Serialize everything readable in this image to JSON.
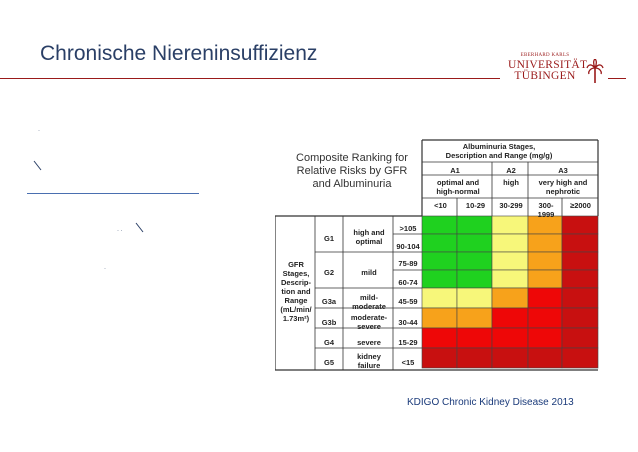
{
  "slide": {
    "title": "Chronische Niereninsuffizienz",
    "caption": "KDIGO Chronic Kidney Disease 2013"
  },
  "logo": {
    "small_text": "EBERHARD KARLS",
    "line1": "UNIVERSITÄT",
    "line2": "TÜBINGEN"
  },
  "colors": {
    "title": "#2a3f66",
    "rule": "#9a1a1a",
    "green": "#1fd11f",
    "yellow": "#f7f77a",
    "orange": "#f7a21b",
    "red": "#ee0707",
    "darkred": "#c81010"
  },
  "figure": {
    "title": [
      "Composite Ranking for",
      "Relative Risks by GFR",
      "and Albuminuria"
    ],
    "albuminuria_header": [
      "Albuminuria Stages,",
      "Description and Range (mg/g)"
    ],
    "albuminuria_stages": [
      {
        "stage": "A1",
        "desc": [
          "optimal and",
          "high-normal"
        ],
        "ranges": [
          "<10",
          "10-29"
        ]
      },
      {
        "stage": "A2",
        "desc": [
          "high"
        ],
        "ranges": [
          "30-299"
        ]
      },
      {
        "stage": "A3",
        "desc": [
          "very high and",
          "nephrotic"
        ],
        "ranges": [
          "300-\n1999",
          "≥2000"
        ]
      }
    ],
    "gfr_label": [
      "GFR",
      "Stages,",
      "Descrip-",
      "tion and",
      "Range",
      "(mL/min/",
      "1.73m²)"
    ],
    "gfr_stages": [
      {
        "stage": "G1",
        "desc": [
          "high and",
          "optimal"
        ],
        "ranges": [
          ">105",
          "90-104"
        ]
      },
      {
        "stage": "G2",
        "desc": [
          "mild"
        ],
        "ranges": [
          "75-89",
          "60-74"
        ]
      },
      {
        "stage": "G3a",
        "desc": [
          "mild-",
          "moderate"
        ],
        "ranges": [
          "45-59"
        ]
      },
      {
        "stage": "G3b",
        "desc": [
          "moderate-",
          "severe"
        ],
        "ranges": [
          "30-44"
        ]
      },
      {
        "stage": "G4",
        "desc": [
          "severe"
        ],
        "ranges": [
          "15-29"
        ]
      },
      {
        "stage": "G5",
        "desc": [
          "kidney",
          "failure"
        ],
        "ranges": [
          "<15"
        ]
      }
    ],
    "risk_grid": [
      [
        "green",
        "green",
        "yellow",
        "orange",
        "darkred"
      ],
      [
        "green",
        "green",
        "yellow",
        "orange",
        "darkred"
      ],
      [
        "green",
        "green",
        "yellow",
        "orange",
        "darkred"
      ],
      [
        "green",
        "green",
        "yellow",
        "orange",
        "darkred"
      ],
      [
        "yellow",
        "yellow",
        "orange",
        "red",
        "darkred"
      ],
      [
        "orange",
        "orange",
        "red",
        "red",
        "darkred"
      ],
      [
        "red",
        "red",
        "red",
        "red",
        "darkred"
      ],
      [
        "darkred",
        "darkred",
        "darkred",
        "darkred",
        "darkred"
      ]
    ]
  }
}
